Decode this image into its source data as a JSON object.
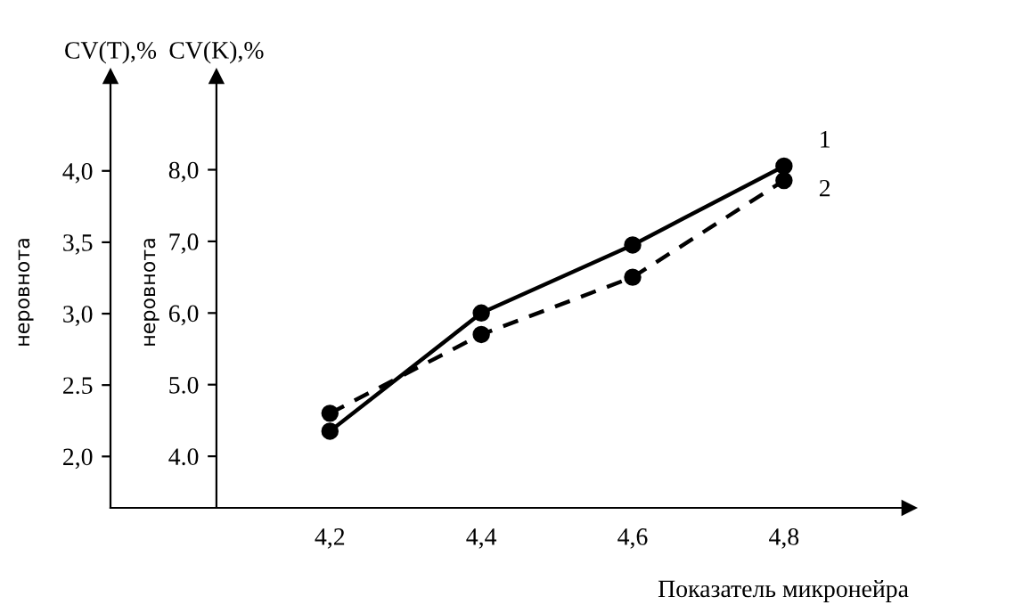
{
  "chart_data": {
    "type": "line",
    "x": [
      4.2,
      4.4,
      4.6,
      4.8
    ],
    "xlim": [
      3.91,
      4.965
    ],
    "xticks": [
      {
        "value": 4.2,
        "label": "4,2"
      },
      {
        "value": 4.4,
        "label": "4,4"
      },
      {
        "value": 4.6,
        "label": "4,6"
      },
      {
        "value": 4.8,
        "label": "4,8"
      }
    ],
    "xlabel": "Показатель микронейра",
    "ylabel": "CV(T),%",
    "ylim": [
      1.64,
      4.66
    ],
    "yticks": [
      {
        "value": 2.0,
        "label": "2,0"
      },
      {
        "value": 2.5,
        "label": "2.5"
      },
      {
        "value": 3.0,
        "label": "3,0"
      },
      {
        "value": 3.5,
        "label": "3,5"
      },
      {
        "value": 4.0,
        "label": "4,0"
      }
    ],
    "y2label": "CV(K),%",
    "y2lim": [
      3.28,
      9.3
    ],
    "y2ticks": [
      {
        "value": 4.0,
        "label": "4.0"
      },
      {
        "value": 5.0,
        "label": "5.0"
      },
      {
        "value": 6.0,
        "label": "6,0"
      },
      {
        "value": 7.0,
        "label": "7,0"
      },
      {
        "value": 8.0,
        "label": "8,0"
      }
    ],
    "series": [
      {
        "name": "1",
        "color": "#000000",
        "axis": "y2",
        "line_style": "solid",
        "values": [
          4.35,
          6.0,
          6.95,
          8.05
        ]
      },
      {
        "name": "2",
        "color": "#000000",
        "axis": "y2",
        "line_style": "dashed",
        "values": [
          4.6,
          5.7,
          6.5,
          7.85
        ]
      }
    ],
    "marker": "circle",
    "grid": false,
    "legend": false,
    "annotations": [
      "неровнота",
      "неровнота"
    ]
  }
}
